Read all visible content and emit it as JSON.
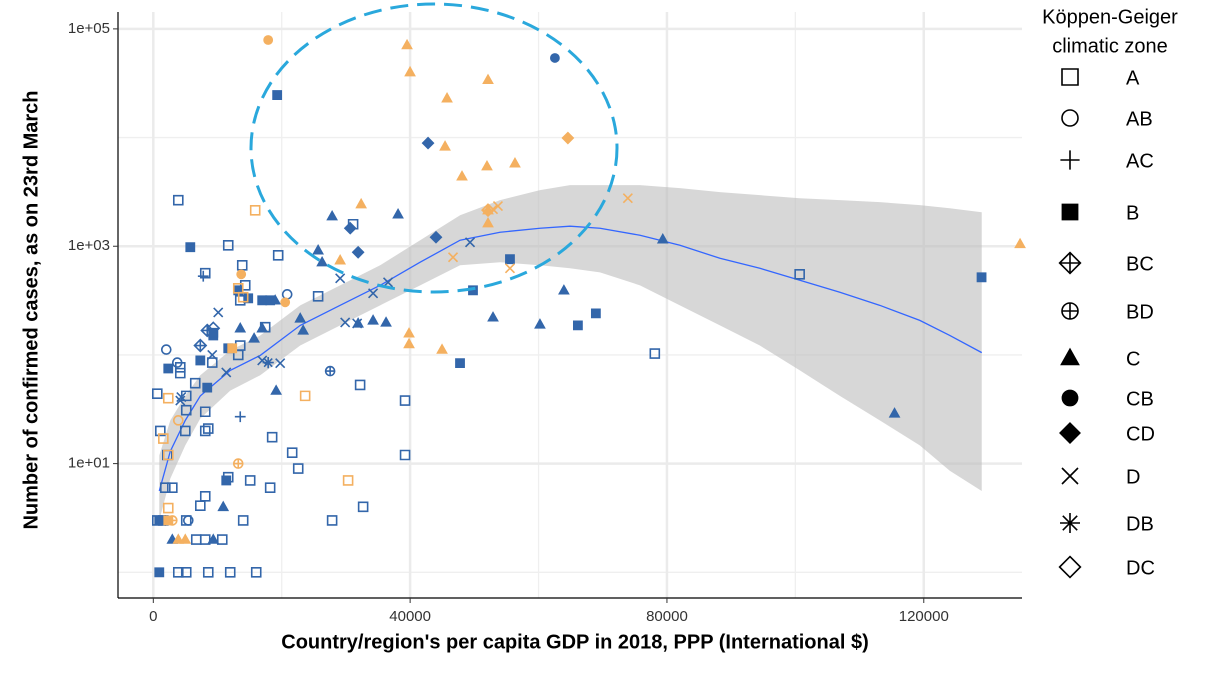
{
  "chart_data": {
    "type": "scatter",
    "x_label": "Country/region's per capita GDP in 2018, PPP (International $)",
    "y_label": "Number of confirmed cases, as on 23rd March",
    "xlim": [
      -5500,
      135300
    ],
    "ylim": [
      0.58,
      143000
    ],
    "log_y": true,
    "grid": true,
    "xticks": [
      0,
      40000,
      80000,
      120000
    ],
    "xminor": [
      20000,
      60000,
      100000
    ],
    "yticks": [
      {
        "value": 10,
        "label": "1e+01"
      },
      {
        "value": 1000,
        "label": "1e+03"
      },
      {
        "value": 100000,
        "label": "1e+05"
      }
    ],
    "yminor": [
      1,
      100,
      10000
    ],
    "legend_position": "right",
    "legend": {
      "title": [
        "Köppen-Geiger",
        "climatic zone"
      ],
      "entries": [
        {
          "label": "A",
          "shape": "square-open"
        },
        {
          "label": "AB",
          "shape": "circle-open"
        },
        {
          "label": "AC",
          "shape": "plus"
        },
        {
          "label": "B",
          "shape": "square"
        },
        {
          "label": "BC",
          "shape": "diamond-plus"
        },
        {
          "label": "BD",
          "shape": "circle-plus"
        },
        {
          "label": "C",
          "shape": "triangle"
        },
        {
          "label": "CB",
          "shape": "circle"
        },
        {
          "label": "CD",
          "shape": "diamond"
        },
        {
          "label": "D",
          "shape": "cross"
        },
        {
          "label": "DB",
          "shape": "asterisk"
        },
        {
          "label": "DC",
          "shape": "diamond-open"
        }
      ]
    },
    "series": [
      {
        "shape": "square-open",
        "color": "#3366aa",
        "x": [
          3890,
          5130,
          8560,
          11980,
          16030,
          3890,
          620,
          1090,
          2180,
          2960,
          1870,
          620,
          1560,
          5130,
          6690,
          8090,
          10740,
          7320,
          8090,
          14000,
          11670,
          15090,
          18200,
          21630,
          22570,
          27850,
          32680,
          39210,
          39210,
          32210,
          18510,
          8560,
          8090,
          5130,
          5130,
          6530,
          4200,
          4200,
          9180,
          13230,
          13540,
          17430,
          13540,
          19450,
          13850,
          11670,
          14320,
          25670,
          31120,
          8090,
          78110,
          100670,
          4980,
          8090
        ],
        "values": [
          1,
          1,
          1,
          1,
          1,
          2655,
          44,
          20,
          12,
          6,
          6,
          3,
          3,
          3,
          2,
          2,
          2,
          4.1,
          5,
          3,
          7.5,
          7,
          6,
          12.6,
          9,
          3,
          4,
          12,
          38,
          53,
          17.5,
          21,
          30,
          31,
          42,
          55,
          68,
          77,
          85,
          100,
          122,
          180,
          318,
          826,
          668,
          1021,
          437,
          346,
          1594,
          565,
          103,
          552,
          20,
          20
        ]
      },
      {
        "shape": "square",
        "color": "#3366aa",
        "x": [
          930,
          930,
          2330,
          5760,
          7320,
          8400,
          9340,
          11670,
          11360,
          13230,
          14780,
          16960,
          18200,
          19290,
          49790,
          55550,
          47770,
          66130,
          68930,
          129000,
          9340
        ],
        "values": [
          1,
          3,
          75,
          980,
          89,
          50,
          151,
          115,
          7,
          393,
          332,
          318,
          318,
          24600,
          393,
          760,
          84,
          187,
          241,
          518,
          160
        ]
      },
      {
        "shape": "triangle",
        "color": "#3366aa",
        "x": [
          2960,
          9340,
          10890,
          13540,
          15700,
          16960,
          18980,
          19130,
          22880,
          23340,
          25670,
          26290,
          27850,
          31900,
          34230,
          38120,
          36250,
          52910,
          60220,
          63950,
          79350,
          115450
        ],
        "values": [
          2,
          2,
          4,
          176,
          142,
          176,
          318,
          47,
          217,
          168,
          919,
          713,
          1890,
          195,
          208,
          1970,
          199,
          222,
          191,
          393,
          1160,
          29
        ]
      },
      {
        "shape": "diamond",
        "color": "#3366aa",
        "x": [
          31900,
          30670,
          44030,
          42790
        ],
        "values": [
          880,
          1465,
          1210,
          8900
        ]
      },
      {
        "shape": "circle",
        "color": "#3366aa",
        "x": [
          62550
        ],
        "values": [
          54000
        ]
      },
      {
        "shape": "cross",
        "color": "#3366aa",
        "x": [
          10110,
          9180,
          11360,
          4360,
          16960,
          19760,
          29880,
          31750,
          29100,
          34230,
          36560,
          49330,
          4200
        ],
        "values": [
          246,
          100,
          69,
          41,
          89,
          84,
          199,
          195,
          507,
          369,
          466,
          1088,
          38
        ]
      },
      {
        "shape": "plus",
        "color": "#3366aa",
        "x": [
          7780,
          13540,
          1870
        ],
        "values": [
          530,
          27,
          3
        ]
      },
      {
        "shape": "diamond-plus",
        "color": "#3366aa",
        "x": [
          8400,
          7320
        ],
        "values": [
          168,
          122
        ]
      },
      {
        "shape": "circle-plus",
        "color": "#3366aa",
        "x": [
          27540
        ],
        "values": [
          71
        ]
      },
      {
        "shape": "asterisk",
        "color": "#3366aa",
        "x": [
          17890
        ],
        "values": [
          85
        ]
      },
      {
        "shape": "circle-open",
        "color": "#3366aa",
        "x": [
          2020,
          3730,
          20850,
          5450
        ],
        "values": [
          112,
          85,
          361,
          3
        ]
      },
      {
        "shape": "diamond-open",
        "color": "#3366aa",
        "x": [
          9340
        ],
        "values": [
          176
        ]
      },
      {
        "shape": "square-open",
        "color": "#f4b060",
        "x": [
          15870,
          2330,
          1560,
          2330,
          2330,
          13230,
          14000,
          23650,
          30340
        ],
        "values": [
          2140,
          40,
          17,
          12,
          3.9,
          410,
          340,
          42,
          7
        ]
      },
      {
        "shape": "square",
        "color": "#f4b060",
        "x": [
          12290,
          2330
        ],
        "values": [
          115,
          3
        ]
      },
      {
        "shape": "triangle",
        "color": "#f4b060",
        "x": [
          39520,
          39990,
          52130,
          45750,
          45440,
          48080,
          51970,
          56330,
          52130,
          52130,
          32370,
          39830,
          39830,
          44970,
          29100,
          135000,
          3890,
          4980
        ],
        "values": [
          71000,
          40000,
          34000,
          23000,
          8300,
          4400,
          5450,
          5800,
          2150,
          1630,
          2440,
          158,
          126,
          112,
          743,
          1050,
          2,
          2
        ]
      },
      {
        "shape": "circle",
        "color": "#f4b060",
        "x": [
          17890,
          13690,
          20540
        ],
        "values": [
          79000,
          552,
          305
        ]
      },
      {
        "shape": "diamond",
        "color": "#f4b060",
        "x": [
          64570
        ],
        "values": [
          9900
        ]
      },
      {
        "shape": "cross",
        "color": "#f4b060",
        "x": [
          73910,
          52910,
          53680,
          55550,
          46680
        ],
        "values": [
          2770,
          2190,
          2340,
          627,
          792
        ]
      },
      {
        "shape": "diamond-plus",
        "color": "#f4b060",
        "x": [
          52130
        ],
        "values": [
          2150
        ]
      },
      {
        "shape": "circle-plus",
        "color": "#f4b060",
        "x": [
          13230,
          2960
        ],
        "values": [
          10,
          3
        ]
      },
      {
        "shape": "circle-open",
        "color": "#f4b060",
        "x": [
          3890
        ],
        "values": [
          25
        ]
      }
    ],
    "trend": {
      "color": "#3366ff",
      "band_color": "#bdbdbd",
      "x": [
        930,
        2650,
        4980,
        7320,
        11980,
        16650,
        22880,
        29100,
        35330,
        41560,
        47780,
        54010,
        60230,
        64900,
        69570,
        75800,
        82020,
        88250,
        94470,
        100700,
        106930,
        113150,
        119380,
        124050,
        129030
      ],
      "values": [
        5.6,
        13,
        25,
        42,
        72,
        99,
        187,
        286,
        437,
        713,
        1136,
        1345,
        1464,
        1529,
        1464,
        1262,
        1021,
        775,
        627,
        486,
        377,
        286,
        208,
        151,
        105
      ],
      "upper": [
        11.9,
        25,
        42,
        65,
        110,
        151,
        286,
        437,
        668,
        1136,
        1930,
        2655,
        3281,
        3647,
        3647,
        3647,
        3427,
        3148,
        2951,
        2768,
        2655,
        2547,
        2389,
        2239,
        2056
      ],
      "lower": [
        3.0,
        7.3,
        14.7,
        26,
        47,
        65,
        122,
        187,
        286,
        437,
        668,
        713,
        668,
        627,
        575,
        437,
        286,
        187,
        122,
        72,
        42,
        25,
        14.7,
        8.6,
        5.6
      ]
    }
  }
}
